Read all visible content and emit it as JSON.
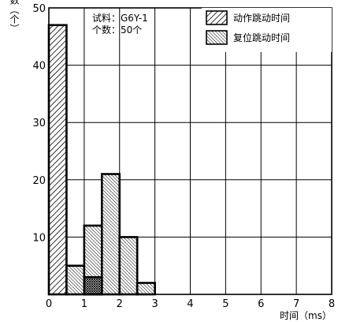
{
  "chart_data": {
    "type": "bar",
    "xlabel": "时间（ms）",
    "ylabel": "个数（个）",
    "xlim": [
      0,
      8
    ],
    "ylim": [
      0,
      50
    ],
    "x_ticks": [
      "0",
      "1",
      "2",
      "3",
      "4",
      "5",
      "6",
      "7",
      "8"
    ],
    "y_ticks": [
      "10",
      "20",
      "30",
      "40",
      "50"
    ],
    "grid": true,
    "legend_position": "top-right",
    "bin_width": 0.5,
    "annotations": [
      "试料：G6Y-1",
      "个数：50个"
    ],
    "series": [
      {
        "name": "动作跳动时间",
        "pattern": "diagonal-hatch",
        "bins": [
          {
            "x_start": 0,
            "x_end": 0.5,
            "value": 47
          }
        ]
      },
      {
        "name": "复位跳动时间",
        "pattern": "dense-hatch",
        "bins": [
          {
            "x_start": 0.5,
            "x_end": 1.0,
            "value": 5
          },
          {
            "x_start": 1.0,
            "x_end": 1.5,
            "value": 12
          },
          {
            "x_start": 1.5,
            "x_end": 2.0,
            "value": 21
          },
          {
            "x_start": 2.0,
            "x_end": 2.5,
            "value": 10
          },
          {
            "x_start": 2.5,
            "x_end": 3.0,
            "value": 2
          }
        ]
      },
      {
        "name": "",
        "pattern": "cross-hatch",
        "bins": [
          {
            "x_start": 1.0,
            "x_end": 1.5,
            "value": 3
          }
        ]
      }
    ],
    "colors": {
      "ink": "#000000",
      "grid": "#000000",
      "background": "#ffffff"
    }
  }
}
